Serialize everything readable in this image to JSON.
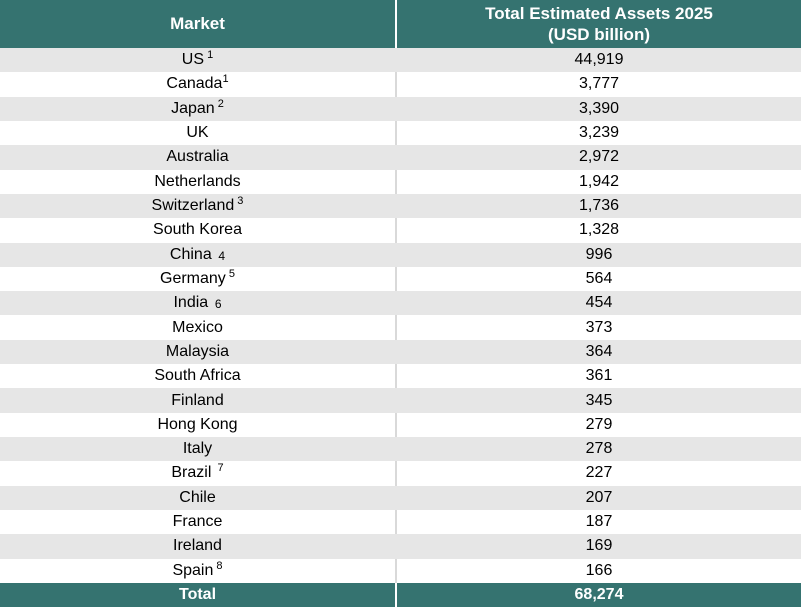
{
  "table": {
    "header": {
      "market_label": "Market",
      "assets_label_line1": "Total Estimated Assets 2025",
      "assets_label_line2": "(USD billion)"
    },
    "rows": [
      {
        "market": "US",
        "marker": " 1",
        "marker_style": "sup",
        "value": "44,919"
      },
      {
        "market": "Canada",
        "marker": "1",
        "marker_style": "sup",
        "value": "3,777"
      },
      {
        "market": "Japan",
        "marker": " 2",
        "marker_style": "sup",
        "value": "3,390"
      },
      {
        "market": "UK",
        "marker": "",
        "marker_style": "",
        "value": "3,239"
      },
      {
        "market": "Australia",
        "marker": "",
        "marker_style": "",
        "value": "2,972"
      },
      {
        "market": "Netherlands",
        "marker": "",
        "marker_style": "",
        "value": "1,942"
      },
      {
        "market": "Switzerland",
        "marker": " 3",
        "marker_style": "sup",
        "value": "1,736"
      },
      {
        "market": "South Korea",
        "marker": "",
        "marker_style": "",
        "value": "1,328"
      },
      {
        "market": "China",
        "marker": "  4",
        "marker_style": "base",
        "value": "996"
      },
      {
        "market": "Germany",
        "marker": " 5",
        "marker_style": "sup",
        "value": "564"
      },
      {
        "market": "India",
        "marker": "  6",
        "marker_style": "base",
        "value": "454"
      },
      {
        "market": "Mexico",
        "marker": "",
        "marker_style": "",
        "value": "373"
      },
      {
        "market": "Malaysia",
        "marker": "",
        "marker_style": "",
        "value": "364"
      },
      {
        "market": "South Africa",
        "marker": "",
        "marker_style": "",
        "value": "361"
      },
      {
        "market": "Finland",
        "marker": "",
        "marker_style": "",
        "value": "345"
      },
      {
        "market": "Hong Kong",
        "marker": "",
        "marker_style": "",
        "value": "279"
      },
      {
        "market": "Italy",
        "marker": "",
        "marker_style": "",
        "value": "278"
      },
      {
        "market": "Brazil",
        "marker": "  7",
        "marker_style": "sup",
        "value": "227"
      },
      {
        "market": "Chile",
        "marker": "",
        "marker_style": "",
        "value": "207"
      },
      {
        "market": "France",
        "marker": "",
        "marker_style": "",
        "value": "187"
      },
      {
        "market": "Ireland",
        "marker": "",
        "marker_style": "",
        "value": "169"
      },
      {
        "market": "Spain",
        "marker": " 8",
        "marker_style": "sup",
        "value": "166"
      }
    ],
    "footer": {
      "label": "Total",
      "value": "68,274"
    },
    "colors": {
      "header_bg": "#357370",
      "stripe_bg": "#E6E6E6",
      "white_row_bg": "#FFFFFF",
      "divider": "#D9D9D9",
      "header_text": "#FFFFFF",
      "body_text": "#000000"
    }
  },
  "chart_data": {
    "type": "table",
    "title": "Total Estimated Assets 2025 by Market",
    "columns": [
      "Market",
      "Total Estimated Assets 2025 (USD billion)"
    ],
    "rows": [
      [
        "US",
        44919
      ],
      [
        "Canada",
        3777
      ],
      [
        "Japan",
        3390
      ],
      [
        "UK",
        3239
      ],
      [
        "Australia",
        2972
      ],
      [
        "Netherlands",
        1942
      ],
      [
        "Switzerland",
        1736
      ],
      [
        "South Korea",
        1328
      ],
      [
        "China",
        996
      ],
      [
        "Germany",
        564
      ],
      [
        "India",
        454
      ],
      [
        "Mexico",
        373
      ],
      [
        "Malaysia",
        364
      ],
      [
        "South Africa",
        361
      ],
      [
        "Finland",
        345
      ],
      [
        "Hong Kong",
        279
      ],
      [
        "Italy",
        278
      ],
      [
        "Brazil",
        227
      ],
      [
        "Chile",
        207
      ],
      [
        "France",
        187
      ],
      [
        "Ireland",
        169
      ],
      [
        "Spain",
        166
      ]
    ],
    "total_row": [
      "Total",
      68274
    ],
    "footnote_markers": {
      "US": "1",
      "Canada": "1",
      "Japan": "2",
      "Switzerland": "3",
      "China": "4",
      "Germany": "5",
      "India": "6",
      "Brazil": "7",
      "Spain": "8"
    },
    "layout_hints": {
      "striped_rows": true,
      "header_style": "teal background, white bold text",
      "total_row_style": "teal background, white bold text"
    }
  }
}
